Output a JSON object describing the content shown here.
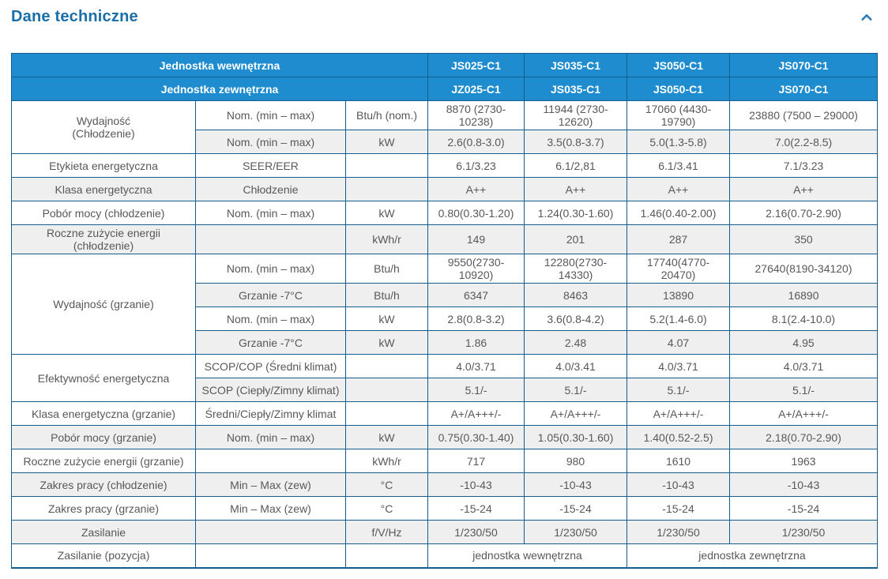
{
  "colors": {
    "header_bg": "#1e8cce",
    "table_border": "#135e8e",
    "zebra_row": "#efefef",
    "title_text": "#1b6fa8",
    "body_text": "#58585a"
  },
  "page": {
    "title": "Dane techniczne",
    "collapse_icon": "chevron-up-icon"
  },
  "table": {
    "header_rows": [
      {
        "label": "Jednostka wewnętrzna",
        "models": [
          "JS025-C1",
          "JS035-C1",
          "JS050-C1",
          "JS070-C1"
        ]
      },
      {
        "label": "Jednostka zewnętrzna",
        "models": [
          "JZ025-C1",
          "JS035-C1",
          "JS050-C1",
          "JS070-C1"
        ]
      }
    ],
    "rows": [
      {
        "label": "Wydajność\n(Chłodzenie)",
        "label_rowspan": 2,
        "sub": "Nom. (min – max)",
        "unit": "Btu/h (nom.)",
        "values": [
          "8870 (2730-10238)",
          "11944 (2730-12620)",
          "17060 (4430-19790)",
          "23880 (7500 – 29000)"
        ]
      },
      {
        "sub": "Nom. (min – max)",
        "unit": "kW",
        "values": [
          "2.6(0.8-3.0)",
          "3.5(0.8-3.7)",
          "5.0(1.3-5.8)",
          "7.0(2.2-8.5)"
        ]
      },
      {
        "label": "Etykieta energetyczna",
        "sub": "SEER/EER",
        "unit": "",
        "values": [
          "6.1/3.23",
          "6.1/2,81",
          "6.1/3.41",
          "7.1/3.23"
        ]
      },
      {
        "label": "Klasa energetyczna",
        "sub": "Chłodzenie",
        "unit": "",
        "values": [
          "A++",
          "A++",
          "A++",
          "A++"
        ]
      },
      {
        "label": "Pobór mocy (chłodzenie)",
        "sub": "Nom. (min – max)",
        "unit": "kW",
        "values": [
          "0.80(0.30-1.20)",
          "1.24(0.30-1.60)",
          "1.46(0.40-2.00)",
          "2.16(0.70-2.90)"
        ]
      },
      {
        "label": "Roczne zużycie energii (chłodzenie)",
        "sub": "",
        "unit": "kWh/r",
        "values": [
          "149",
          "201",
          "287",
          "350"
        ]
      },
      {
        "label": "Wydajność (grzanie)",
        "label_rowspan": 4,
        "sub": "Nom. (min – max)",
        "unit": "Btu/h",
        "values": [
          "9550(2730-10920)",
          "12280(2730-14330)",
          "17740(4770-20470)",
          "27640(8190-34120)"
        ]
      },
      {
        "sub": "Grzanie -7°C",
        "unit": "Btu/h",
        "values": [
          "6347",
          "8463",
          "13890",
          "16890"
        ]
      },
      {
        "sub": "Nom. (min – max)",
        "unit": "kW",
        "values": [
          "2.8(0.8-3.2)",
          "3.6(0.8-4.2)",
          "5.2(1.4-6.0)",
          "8.1(2.4-10.0)"
        ]
      },
      {
        "sub": "Grzanie -7°C",
        "unit": "kW",
        "values": [
          "1.86",
          "2.48",
          "4.07",
          "4.95"
        ]
      },
      {
        "label": "Efektywność energetyczna",
        "label_rowspan": 2,
        "sub": "SCOP/COP (Średni klimat)",
        "unit": "",
        "values": [
          "4.0/3.71",
          "4.0/3.41",
          "4.0/3.71",
          "4.0/3.71"
        ]
      },
      {
        "sub": "SCOP (Ciepły/Zimny klimat)",
        "unit": "",
        "values": [
          "5.1/-",
          "5.1/-",
          "5.1/-",
          "5.1/-"
        ]
      },
      {
        "label": "Klasa energetyczna (grzanie)",
        "sub": "Średni/Ciepły/Zimny klimat",
        "unit": "",
        "values": [
          "A+/A+++/-",
          "A+/A+++/-",
          "A+/A+++/-",
          "A+/A+++/-"
        ]
      },
      {
        "label": "Pobór mocy (grzanie)",
        "sub": "Nom. (min – max)",
        "unit": "kW",
        "values": [
          "0.75(0.30-1.40)",
          "1.05(0.30-1.60)",
          "1.40(0.52-2.5)",
          "2.18(0.70-2.90)"
        ]
      },
      {
        "label": "Roczne zużycie energii (grzanie)",
        "sub": "",
        "unit": "kWh/r",
        "values": [
          "717",
          "980",
          "1610",
          "1963"
        ]
      },
      {
        "label": "Zakres pracy (chłodzenie)",
        "sub": "Min – Max (zew)",
        "unit": "°C",
        "values": [
          "-10-43",
          "-10-43",
          "-10-43",
          "-10-43"
        ]
      },
      {
        "label": "Zakres pracy (grzanie)",
        "sub": "Min – Max (zew)",
        "unit": "°C",
        "values": [
          "-15-24",
          "-15-24",
          "-15-24",
          "-15-24"
        ]
      },
      {
        "label": "Zasilanie",
        "sub": "",
        "unit": "f/V/Hz",
        "values": [
          "1/230/50",
          "1/230/50",
          "1/230/50",
          "1/230/50"
        ]
      },
      {
        "label": "Zasilanie (pozycja)",
        "sub": "",
        "unit": "",
        "values": [
          "jednostka wewnętrzna",
          "jednostka zewnętrzna"
        ],
        "values_colspan": 2
      }
    ]
  }
}
